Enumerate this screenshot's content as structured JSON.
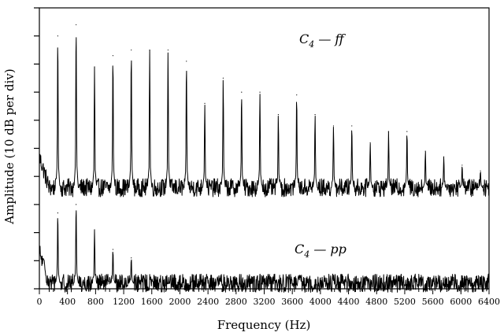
{
  "chart_data": {
    "type": "line",
    "xlabel": "Frequency (Hz)",
    "ylabel": "Amplitude (10 dB per div)",
    "xlim": [
      0,
      6400
    ],
    "xticks": [
      0,
      400,
      800,
      1200,
      1600,
      2000,
      2400,
      2800,
      3200,
      3600,
      4000,
      4400,
      4800,
      5200,
      5600,
      6000,
      6400
    ],
    "y_divisions": 10,
    "y_units": "divisions (10 dB per div)",
    "grid": false,
    "legend": "none",
    "series": [
      {
        "name": "C4 — ff",
        "label": {
          "base": "C",
          "sub": "4",
          "rest": " — ff"
        },
        "noise_floor": 3.6,
        "peaks": [
          {
            "x": 262,
            "y": 9.0
          },
          {
            "x": 523,
            "y": 9.4
          },
          {
            "x": 785,
            "y": 7.9
          },
          {
            "x": 1047,
            "y": 8.3
          },
          {
            "x": 1308,
            "y": 8.5
          },
          {
            "x": 1570,
            "y": 8.5
          },
          {
            "x": 1831,
            "y": 8.5
          },
          {
            "x": 2093,
            "y": 8.1
          },
          {
            "x": 2354,
            "y": 6.6
          },
          {
            "x": 2616,
            "y": 7.5
          },
          {
            "x": 2878,
            "y": 7.0
          },
          {
            "x": 3139,
            "y": 7.0
          },
          {
            "x": 3401,
            "y": 6.2
          },
          {
            "x": 3662,
            "y": 6.9
          },
          {
            "x": 3924,
            "y": 6.2
          },
          {
            "x": 4186,
            "y": 5.8
          },
          {
            "x": 4447,
            "y": 5.8
          },
          {
            "x": 4709,
            "y": 5.2
          },
          {
            "x": 4970,
            "y": 5.6
          },
          {
            "x": 5232,
            "y": 5.6
          },
          {
            "x": 5494,
            "y": 4.9
          },
          {
            "x": 5756,
            "y": 4.7
          },
          {
            "x": 6017,
            "y": 4.4
          },
          {
            "x": 6278,
            "y": 4.2
          }
        ]
      },
      {
        "name": "C4 — pp",
        "label": {
          "base": "C",
          "sub": "4",
          "rest": " — pp"
        },
        "noise_floor": 0.2,
        "peaks": [
          {
            "x": 262,
            "y": 2.7
          },
          {
            "x": 523,
            "y": 3.0
          },
          {
            "x": 785,
            "y": 2.1
          },
          {
            "x": 1047,
            "y": 1.4
          },
          {
            "x": 1308,
            "y": 1.1
          }
        ]
      }
    ]
  }
}
